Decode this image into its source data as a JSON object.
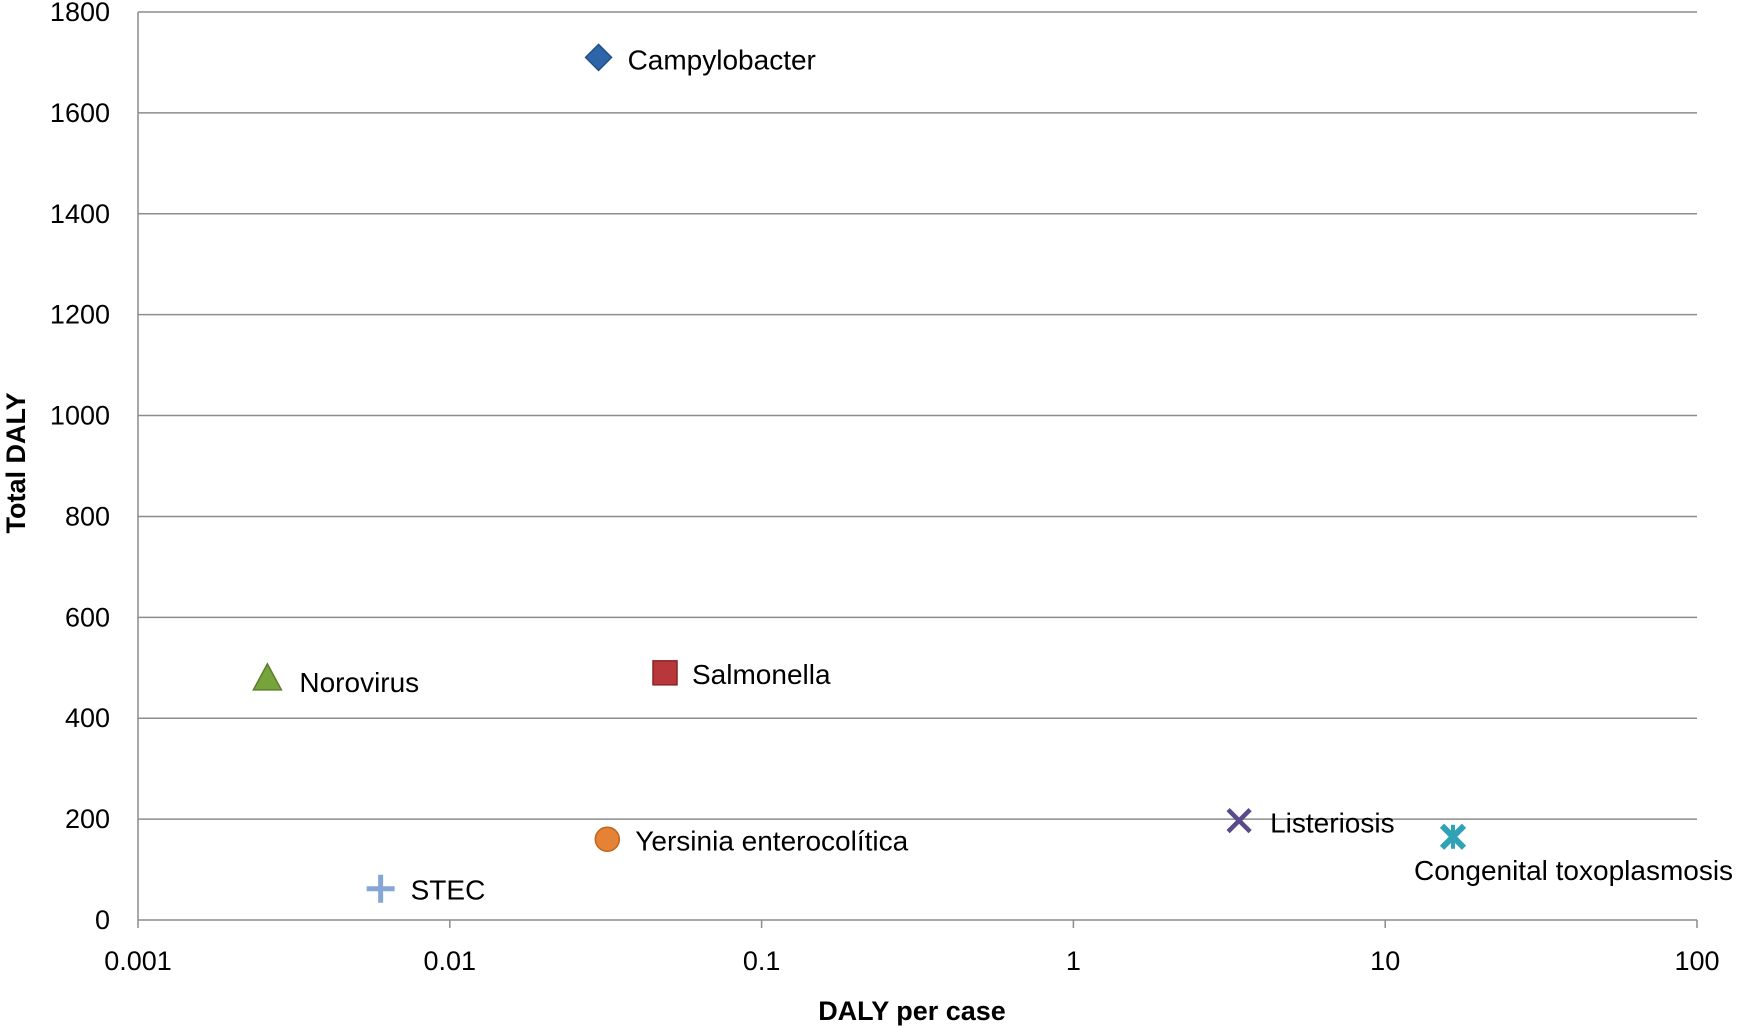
{
  "chart_data": {
    "type": "scatter",
    "title": "",
    "xlabel": "DALY per case",
    "ylabel": "Total DALY",
    "x_scale": "log",
    "xlim": [
      0.001,
      100
    ],
    "ylim": [
      0,
      1800
    ],
    "x_ticks": [
      "0.001",
      "0.01",
      "0.1",
      "1",
      "10",
      "100"
    ],
    "y_ticks": [
      "0",
      "200",
      "400",
      "600",
      "800",
      "1000",
      "1200",
      "1400",
      "1600",
      "1800"
    ],
    "grid": {
      "horizontal": true,
      "vertical": false
    },
    "legend": "none",
    "points": [
      {
        "label": "Campylobacter",
        "x": 0.03,
        "y": 1710,
        "marker": "diamond",
        "color": "#2e64a8"
      },
      {
        "label": "Norovirus",
        "x": 0.0026,
        "y": 480,
        "marker": "triangle",
        "color": "#77a33c"
      },
      {
        "label": "Salmonella",
        "x": 0.049,
        "y": 490,
        "marker": "square",
        "color": "#b8373a"
      },
      {
        "label": "Yersinia enterocolítica",
        "x": 0.032,
        "y": 160,
        "marker": "circle",
        "color": "#e58236"
      },
      {
        "label": "STEC",
        "x": 0.006,
        "y": 62,
        "marker": "plus",
        "color": "#86a6d8"
      },
      {
        "label": "Listeriosis",
        "x": 3.4,
        "y": 197,
        "marker": "x",
        "color": "#5a4a8a"
      },
      {
        "label": "Congenital toxoplasmosis",
        "x": 16.5,
        "y": 165,
        "marker": "star",
        "color": "#2fa3b5"
      }
    ]
  }
}
